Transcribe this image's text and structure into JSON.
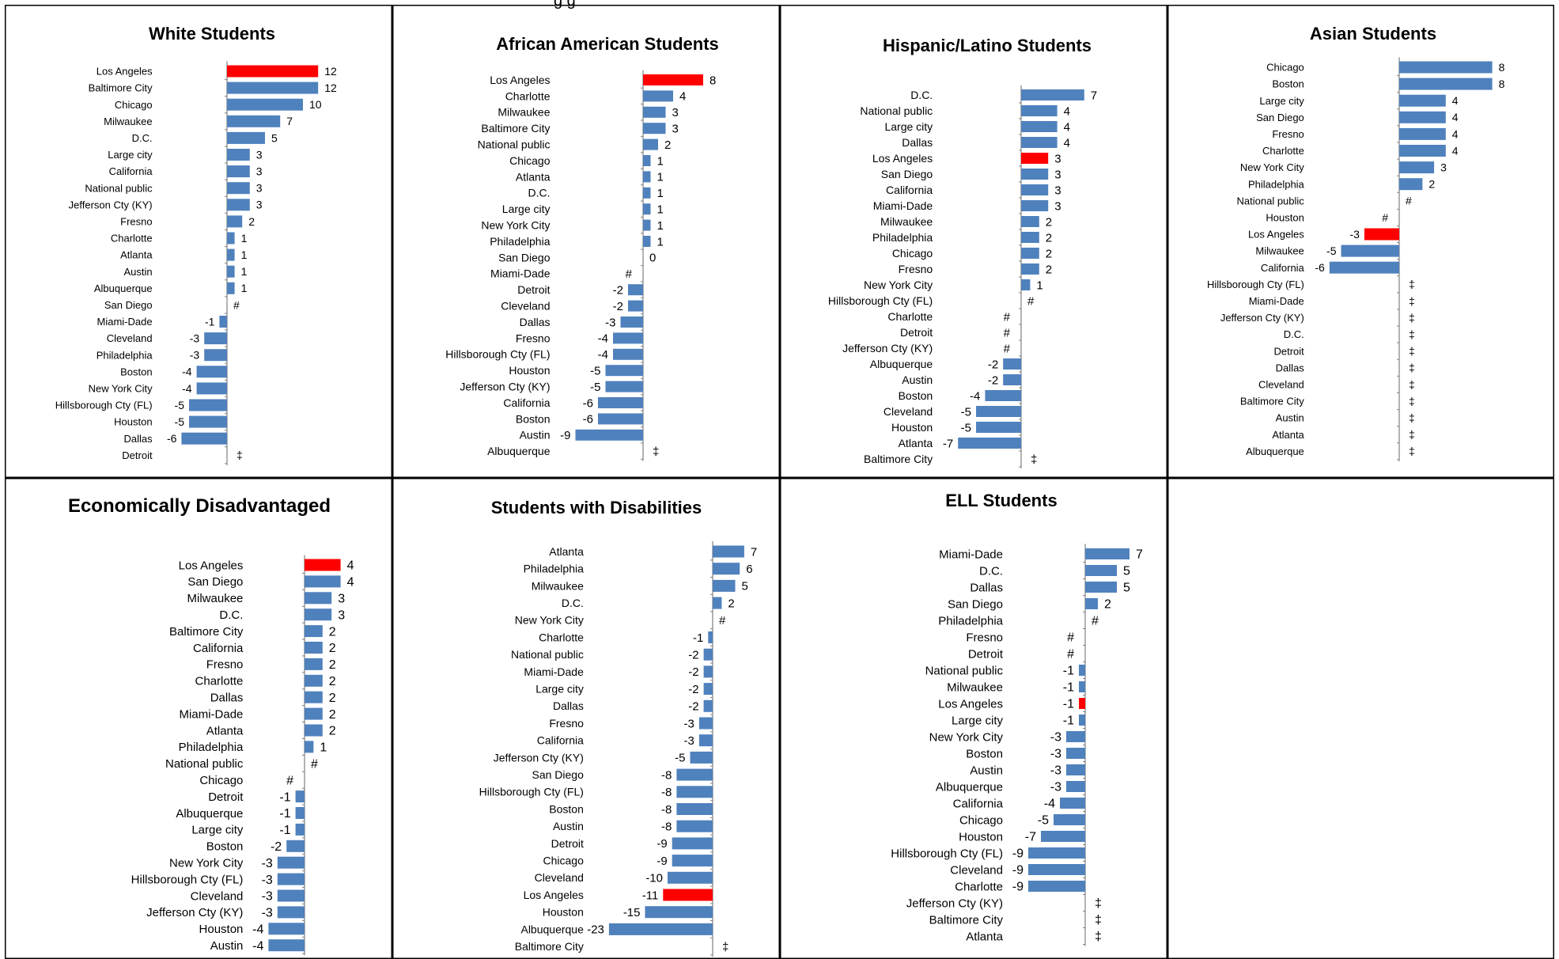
{
  "figure_header": "g        g",
  "chart_data": [
    {
      "type": "bar",
      "orientation": "horizontal",
      "title": "White Students",
      "categories": [
        "Los Angeles",
        "Baltimore City",
        "Chicago",
        "Milwaukee",
        "D.C.",
        "Large city",
        "California",
        "National public",
        "Jefferson Cty (KY)",
        "Fresno",
        "Charlotte",
        "Atlanta",
        "Austin",
        "Albuquerque",
        "San Diego",
        "Miami-Dade",
        "Cleveland",
        "Philadelphia",
        "Boston",
        "New York City",
        "Hillsborough Cty (FL)",
        "Houston",
        "Dallas",
        "Detroit"
      ],
      "values": [
        12,
        12,
        10,
        7,
        5,
        3,
        3,
        3,
        3,
        2,
        1,
        1,
        1,
        1,
        0,
        -1,
        -3,
        -3,
        -4,
        -4,
        -5,
        -5,
        -6,
        null
      ],
      "value_labels": [
        "12",
        "12",
        "10",
        "7",
        "5",
        "3",
        "3",
        "3",
        "3",
        "2",
        "1",
        "1",
        "1",
        "1",
        "#",
        "-1",
        "-3",
        "-3",
        "-4",
        "-4",
        "-5",
        "-5",
        "-6",
        "‡"
      ],
      "highlight": "Los Angeles",
      "xlim": [
        -6.5,
        12
      ]
    },
    {
      "type": "bar",
      "orientation": "horizontal",
      "title": "African American Students",
      "categories": [
        "Los Angeles",
        "Charlotte",
        "Milwaukee",
        "Baltimore City",
        "National public",
        "Chicago",
        "Atlanta",
        "D.C.",
        "Large city",
        "New York City",
        "Philadelphia",
        "San Diego",
        "Miami-Dade",
        "Detroit",
        "Cleveland",
        "Dallas",
        "Fresno",
        "Hillsborough Cty (FL)",
        "Houston",
        "Jefferson Cty (KY)",
        "California",
        "Boston",
        "Austin",
        "Albuquerque"
      ],
      "values": [
        8,
        4,
        3,
        3,
        2,
        1,
        1,
        1,
        1,
        1,
        1,
        0,
        0,
        -2,
        -2,
        -3,
        -4,
        -4,
        -5,
        -5,
        -6,
        -6,
        -9,
        null
      ],
      "value_labels": [
        "8",
        "4",
        "3",
        "3",
        "2",
        "1",
        "1",
        "1",
        "1",
        "1",
        "1",
        "0",
        "#",
        "-2",
        "-2",
        "-3",
        "-4",
        "-4",
        "-5",
        "-5",
        "-6",
        "-6",
        "-9",
        "‡"
      ],
      "highlight": "Los Angeles",
      "xlim": [
        -9,
        8
      ]
    },
    {
      "type": "bar",
      "orientation": "horizontal",
      "title": "Hispanic/Latino Students",
      "categories": [
        "D.C.",
        "National public",
        "Large city",
        "Dallas",
        "Los Angeles",
        "San Diego",
        "California",
        "Miami-Dade",
        "Milwaukee",
        "Philadelphia",
        "Chicago",
        "Fresno",
        "New York City",
        "Hillsborough Cty (FL)",
        "Charlotte",
        "Detroit",
        "Jefferson Cty (KY)",
        "Albuquerque",
        "Austin",
        "Boston",
        "Cleveland",
        "Houston",
        "Atlanta",
        "Baltimore City"
      ],
      "values": [
        7,
        4,
        4,
        4,
        3,
        3,
        3,
        3,
        2,
        2,
        2,
        2,
        1,
        0,
        0,
        0,
        0,
        -2,
        -2,
        -4,
        -5,
        -5,
        -7,
        null
      ],
      "value_labels": [
        "7",
        "4",
        "4",
        "4",
        "3",
        "3",
        "3",
        "3",
        "2",
        "2",
        "2",
        "2",
        "1",
        "#",
        "#",
        "#",
        "#",
        "-2",
        "-2",
        "-4",
        "-5",
        "-5",
        "-7",
        "‡"
      ],
      "highlight": "Los Angeles",
      "xlim": [
        -7,
        7
      ]
    },
    {
      "type": "bar",
      "orientation": "horizontal",
      "title": "Asian Students",
      "categories": [
        "Chicago",
        "Boston",
        "Large city",
        "San Diego",
        "Fresno",
        "Charlotte",
        "New York City",
        "Philadelphia",
        "National public",
        "Houston",
        "Los Angeles",
        "Milwaukee",
        "California",
        "Hillsborough Cty (FL)",
        "Miami-Dade",
        "Jefferson Cty (KY)",
        "D.C.",
        "Detroit",
        "Dallas",
        "Cleveland",
        "Baltimore City",
        "Austin",
        "Atlanta",
        "Albuquerque"
      ],
      "values": [
        8,
        8,
        4,
        4,
        4,
        4,
        3,
        2,
        0,
        0,
        -3,
        -5,
        -6,
        null,
        null,
        null,
        null,
        null,
        null,
        null,
        null,
        null,
        null,
        null
      ],
      "value_labels": [
        "8",
        "8",
        "4",
        "4",
        "4",
        "4",
        "3",
        "2",
        "#",
        "#",
        "-3",
        "-5",
        "-6",
        "‡",
        "‡",
        "‡",
        "‡",
        "‡",
        "‡",
        "‡",
        "‡",
        "‡",
        "‡",
        "‡"
      ],
      "highlight": "Los Angeles",
      "xlim": [
        -6,
        8
      ]
    },
    {
      "type": "bar",
      "orientation": "horizontal",
      "title": "Economically Disadvantaged",
      "categories": [
        "Los Angeles",
        "San Diego",
        "Milwaukee",
        "D.C.",
        "Baltimore City",
        "California",
        "Fresno",
        "Charlotte",
        "Dallas",
        "Miami-Dade",
        "Atlanta",
        "Philadelphia",
        "National public",
        "Chicago",
        "Detroit",
        "Albuquerque",
        "Large city",
        "Boston",
        "New York City",
        "Hillsborough Cty (FL)",
        "Cleveland",
        "Jefferson Cty (KY)",
        "Houston",
        "Austin"
      ],
      "values": [
        4,
        4,
        3,
        3,
        2,
        2,
        2,
        2,
        2,
        2,
        2,
        1,
        0,
        0,
        -1,
        -1,
        -1,
        -2,
        -3,
        -3,
        -3,
        -3,
        -4,
        -4
      ],
      "value_labels": [
        "4",
        "4",
        "3",
        "3",
        "2",
        "2",
        "2",
        "2",
        "2",
        "2",
        "2",
        "1",
        "#",
        "#",
        "-1",
        "-1",
        "-1",
        "-2",
        "-3",
        "-3",
        "-3",
        "-3",
        "-4",
        "-4"
      ],
      "highlight": "Los Angeles",
      "xlim": [
        -4,
        4
      ]
    },
    {
      "type": "bar",
      "orientation": "horizontal",
      "title": "Students with Disabilities",
      "categories": [
        "Atlanta",
        "Philadelphia",
        "Milwaukee",
        "D.C.",
        "New York City",
        "Charlotte",
        "National public",
        "Miami-Dade",
        "Large city",
        "Dallas",
        "Fresno",
        "California",
        "Jefferson Cty (KY)",
        "San Diego",
        "Hillsborough Cty (FL)",
        "Boston",
        "Austin",
        "Detroit",
        "Chicago",
        "Cleveland",
        "Los Angeles",
        "Houston",
        "Albuquerque",
        "Baltimore City"
      ],
      "values": [
        7,
        6,
        5,
        2,
        0,
        -1,
        -2,
        -2,
        -2,
        -2,
        -3,
        -3,
        -5,
        -8,
        -8,
        -8,
        -8,
        -9,
        -9,
        -10,
        -11,
        -15,
        -23,
        null
      ],
      "value_labels": [
        "7",
        "6",
        "5",
        "2",
        "#",
        "-1",
        "-2",
        "-2",
        "-2",
        "-2",
        "-3",
        "-3",
        "-5",
        "-8",
        "-8",
        "-8",
        "-8",
        "-9",
        "-9",
        "-10",
        "-11",
        "-15",
        "-23",
        "‡"
      ],
      "highlight": "Los Angeles",
      "xlim": [
        -23,
        7
      ]
    },
    {
      "type": "bar",
      "orientation": "horizontal",
      "title": "ELL Students",
      "categories": [
        "Miami-Dade",
        "D.C.",
        "Dallas",
        "San Diego",
        "Philadelphia",
        "Fresno",
        "Detroit",
        "National public",
        "Milwaukee",
        "Los Angeles",
        "Large city",
        "New York City",
        "Boston",
        "Austin",
        "Albuquerque",
        "California",
        "Chicago",
        "Houston",
        "Hillsborough Cty (FL)",
        "Cleveland",
        "Charlotte",
        "Jefferson Cty (KY)",
        "Baltimore City",
        "Atlanta"
      ],
      "values": [
        7,
        5,
        5,
        2,
        0,
        0,
        0,
        -1,
        -1,
        -1,
        -1,
        -3,
        -3,
        -3,
        -3,
        -4,
        -5,
        -7,
        -9,
        -9,
        -9,
        null,
        null,
        null
      ],
      "value_labels": [
        "7",
        "5",
        "5",
        "2",
        "#",
        "#",
        "#",
        "-1",
        "-1",
        "-1",
        "-1",
        "-3",
        "-3",
        "-3",
        "-3",
        "-4",
        "-5",
        "-7",
        "-9",
        "-9",
        "-9",
        "‡",
        "‡",
        "‡"
      ],
      "highlight": "Los Angeles",
      "xlim": [
        -9,
        7
      ]
    }
  ],
  "colors": {
    "bar": "#4F81BD",
    "highlight": "#FF0000",
    "axis": "#808080",
    "border": "#000000"
  }
}
